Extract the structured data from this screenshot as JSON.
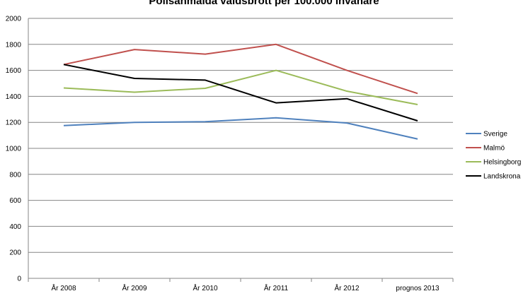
{
  "chart_data": {
    "type": "line",
    "title": "Polisanmälda våldsbrott per 100.000 invånare",
    "xlabel": "",
    "ylabel": "",
    "categories": [
      "År 2008",
      "År 2009",
      "År 2010",
      "År 2011",
      "År 2012",
      "prognos 2013"
    ],
    "y_ticks": [
      "0",
      "200",
      "400",
      "600",
      "800",
      "1000",
      "1200",
      "1400",
      "1600",
      "1800",
      "2000"
    ],
    "ylim": [
      0,
      2000
    ],
    "grid": true,
    "legend_position": "right",
    "series": [
      {
        "name": "Sverige",
        "color": "#4f81bd",
        "values": [
          1175,
          1200,
          1205,
          1235,
          1195,
          1072
        ]
      },
      {
        "name": "Malmö",
        "color": "#c0504d",
        "values": [
          1645,
          1760,
          1725,
          1800,
          1600,
          1422
        ]
      },
      {
        "name": "Helsingborg",
        "color": "#9bbb59",
        "values": [
          1465,
          1432,
          1462,
          1600,
          1440,
          1337
        ]
      },
      {
        "name": "Landskrona",
        "color": "#000000",
        "values": [
          1645,
          1538,
          1525,
          1350,
          1382,
          1212
        ]
      }
    ]
  }
}
